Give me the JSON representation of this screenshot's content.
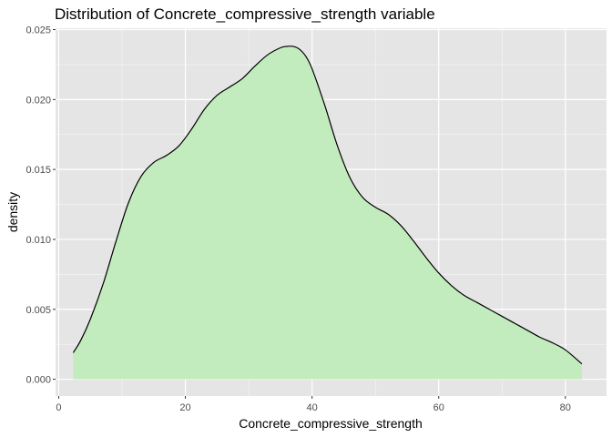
{
  "chart_data": {
    "type": "area",
    "title": "Distribution of Concrete_compressive_strength variable",
    "xlabel": "Concrete_compressive_strength",
    "ylabel": "density",
    "xlim": [
      -0.5,
      86.5
    ],
    "ylim": [
      -0.0012,
      0.0251
    ],
    "x_ticks": [
      0,
      20,
      40,
      60,
      80
    ],
    "y_ticks": [
      0.0,
      0.005,
      0.01,
      0.015,
      0.02,
      0.025
    ],
    "x_tick_labels": [
      "0",
      "20",
      "40",
      "60",
      "80"
    ],
    "y_tick_labels": [
      "0.000",
      "0.005",
      "0.010",
      "0.015",
      "0.020",
      "0.025"
    ],
    "grid": true,
    "colors": {
      "panel_background": "#E5E5E5",
      "grid_major": "#FFFFFF",
      "area_fill": "#C0ECBA",
      "line": "#000000",
      "tick_text": "#4D4D4D"
    },
    "series": [
      {
        "x": [
          2.3,
          3.5,
          5,
          7,
          9,
          11,
          13,
          15,
          17,
          19,
          21,
          23,
          25,
          27,
          29,
          31,
          33,
          35,
          36,
          37,
          38,
          39,
          40,
          42,
          44,
          46,
          48,
          50,
          52,
          54,
          56,
          58,
          60,
          62,
          64,
          66,
          68,
          70,
          72,
          74,
          76,
          78,
          80,
          82.6
        ],
        "y": [
          0.0019,
          0.0028,
          0.0043,
          0.0068,
          0.0098,
          0.0126,
          0.0145,
          0.0155,
          0.016,
          0.0167,
          0.0179,
          0.0193,
          0.0203,
          0.0209,
          0.0215,
          0.0224,
          0.0232,
          0.0237,
          0.0238,
          0.0238,
          0.0236,
          0.0231,
          0.0222,
          0.0196,
          0.0167,
          0.0144,
          0.013,
          0.0123,
          0.0118,
          0.011,
          0.0099,
          0.0087,
          0.0076,
          0.0067,
          0.006,
          0.0055,
          0.005,
          0.0045,
          0.004,
          0.0035,
          0.003,
          0.0026,
          0.0021,
          0.0011
        ]
      }
    ]
  }
}
